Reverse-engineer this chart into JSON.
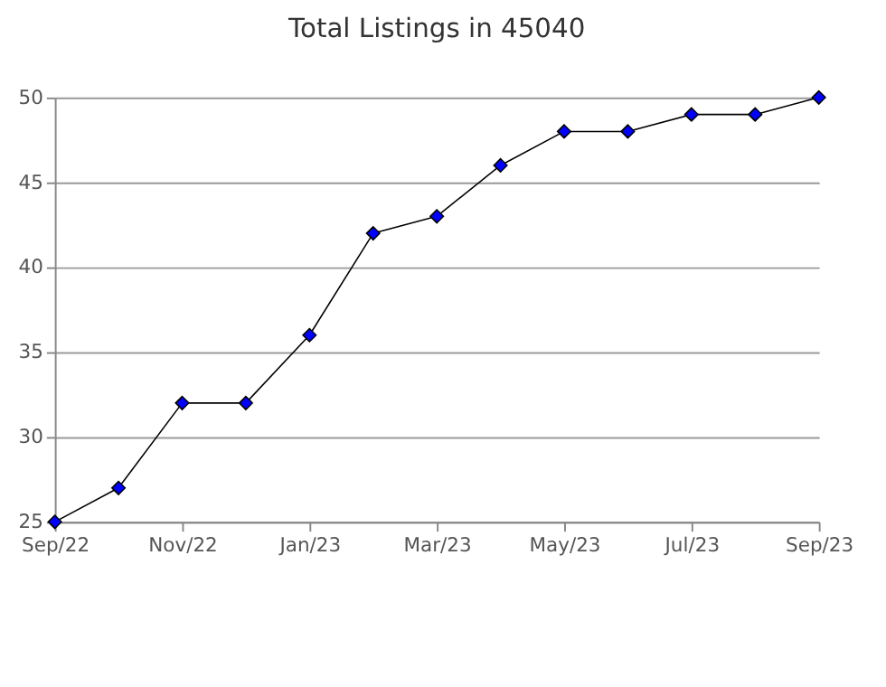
{
  "chart_data": {
    "type": "line",
    "title": "Total Listings in 45040",
    "categories": [
      "Sep/22",
      null,
      "Nov/22",
      null,
      "Jan/23",
      null,
      "Mar/23",
      null,
      "May/23",
      null,
      "Jul/23",
      null,
      "Sep/23"
    ],
    "series": [
      {
        "color": "#0000ff",
        "values": [
          25,
          27,
          32,
          32,
          36,
          42,
          43,
          46,
          48,
          48,
          49,
          49,
          50
        ]
      }
    ],
    "ylim": [
      25,
      50
    ],
    "yticks": [
      25,
      30,
      35,
      40,
      45,
      50
    ],
    "grid": "y",
    "marker": "diamond",
    "line_style": "solid"
  }
}
